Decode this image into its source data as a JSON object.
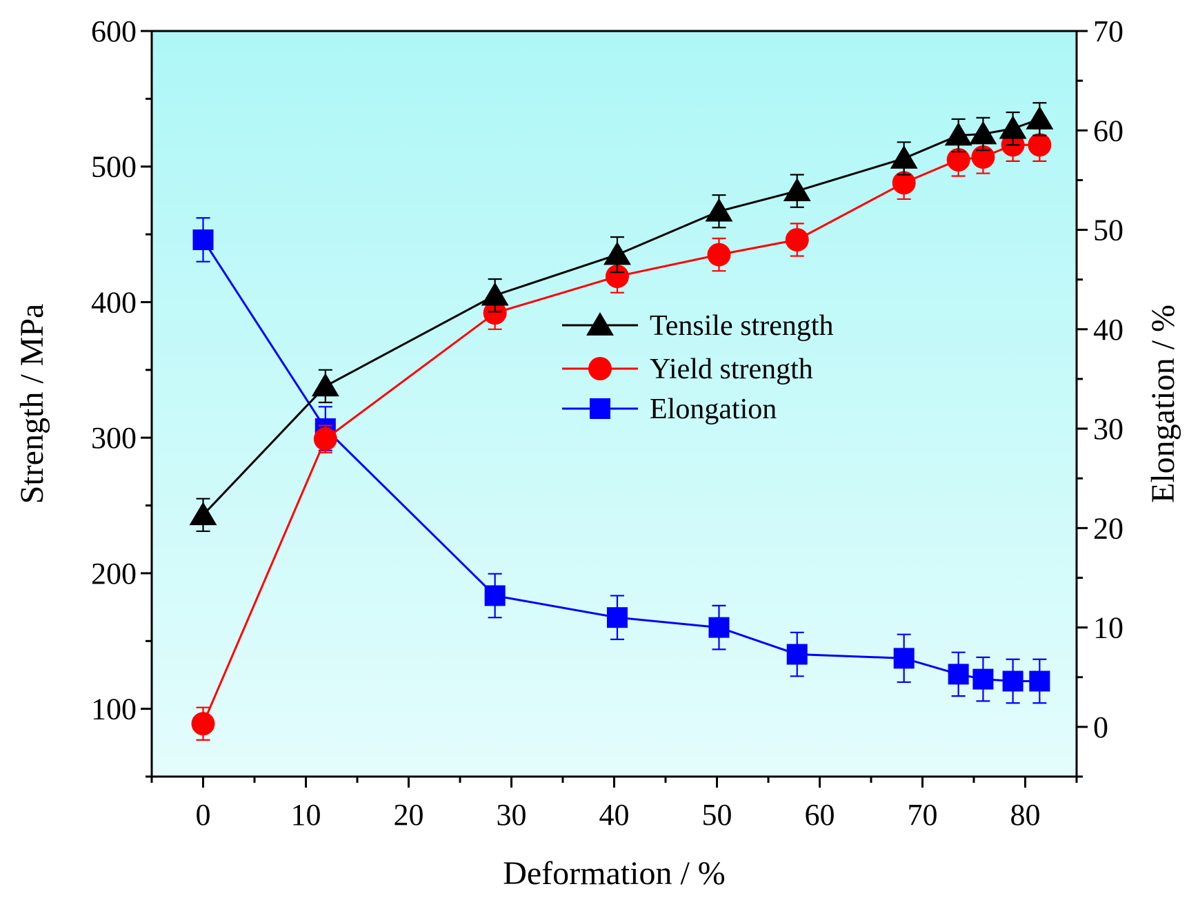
{
  "chart_data": {
    "type": "line",
    "title": "",
    "xlabel": "Deformation / %",
    "ylabel": "Strength / MPa",
    "y2label": "Elongation / %",
    "xlim": [
      -5,
      85
    ],
    "ylim": [
      50,
      600
    ],
    "y2lim": [
      -5,
      70
    ],
    "xticks": [
      0,
      10,
      20,
      30,
      40,
      50,
      60,
      70,
      80
    ],
    "yticks": [
      100,
      200,
      300,
      400,
      500,
      600
    ],
    "y2ticks": [
      0,
      10,
      20,
      30,
      40,
      50,
      60,
      70
    ],
    "legend_position": "center",
    "grid": false,
    "background_gradient": [
      "#aef7f7",
      "#e4fcfc"
    ],
    "x": [
      0,
      11.9,
      28.4,
      40.3,
      50.2,
      57.8,
      68.2,
      73.5,
      75.9,
      78.8,
      81.4
    ],
    "series": [
      {
        "name": "Tensile strength",
        "axis": "left",
        "marker": "triangle",
        "color": "#000000",
        "values": [
          243,
          338,
          405,
          435,
          467,
          482,
          506,
          523,
          524,
          528,
          535
        ],
        "errors": [
          12,
          12,
          12,
          13,
          12,
          12,
          12,
          12,
          12,
          12,
          12
        ]
      },
      {
        "name": "Yield strength",
        "axis": "left",
        "marker": "circle",
        "color": "#ff0000",
        "values": [
          89,
          299,
          392,
          419,
          435,
          446,
          488,
          505,
          507,
          516,
          516
        ],
        "errors": [
          12,
          10,
          12,
          12,
          12,
          12,
          12,
          12,
          12,
          12,
          12
        ]
      },
      {
        "name": "Elongation",
        "axis": "right",
        "marker": "square",
        "color": "#0000ff",
        "values": [
          49,
          30,
          13.2,
          11,
          10,
          7.3,
          6.9,
          5.3,
          4.8,
          4.6,
          4.6
        ],
        "errors": [
          2.2,
          2.2,
          2.2,
          2.2,
          2.2,
          2.2,
          2.4,
          2.2,
          2.2,
          2.2,
          2.2
        ]
      }
    ]
  }
}
